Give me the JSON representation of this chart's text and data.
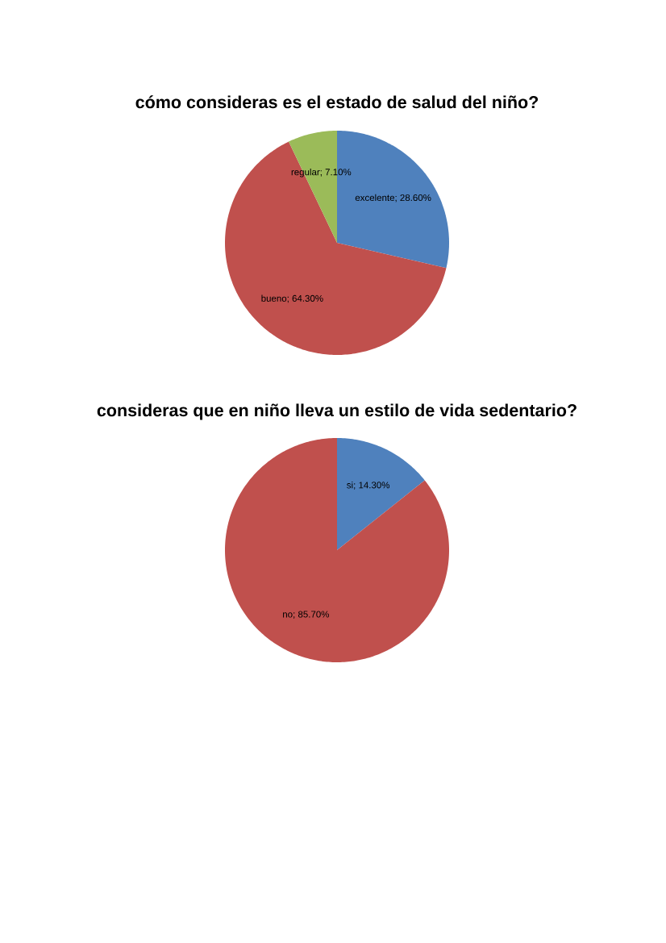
{
  "chart_data": [
    {
      "type": "pie",
      "title": "cómo consideras es el estado de salud del niño?",
      "categories": [
        "excelente",
        "bueno",
        "regular"
      ],
      "values": [
        28.6,
        64.3,
        7.1
      ],
      "colors": [
        "#4f81bd",
        "#c0504d",
        "#9bbb59"
      ],
      "value_labels": [
        "; 28.60%",
        "; 64.30%",
        "; 7.10%"
      ]
    },
    {
      "type": "pie",
      "title": "consideras que en niño lleva un estilo de vida sedentario?",
      "categories": [
        "si",
        "no"
      ],
      "values": [
        14.3,
        85.7
      ],
      "colors": [
        "#4f81bd",
        "#c0504d"
      ],
      "value_labels": [
        "; 14.30%",
        "; 85.70%"
      ]
    }
  ]
}
